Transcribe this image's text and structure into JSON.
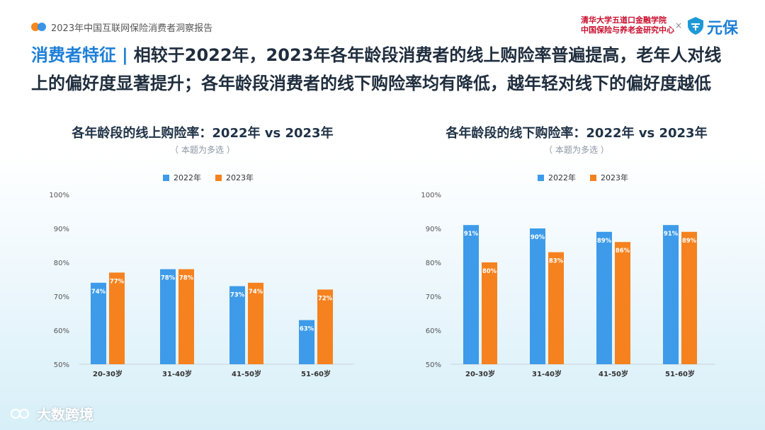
{
  "header": {
    "report_title": "2023年中国互联网保险消费者洞察报告",
    "org_line1": "清华大学五道口金融学院",
    "org_line2": "中国保险与养老金研究中心",
    "cross": "×",
    "brand_name": "元保",
    "colors": {
      "brand_blue": "#1d7fd6",
      "org_red": "#c8102e"
    }
  },
  "headline": {
    "tag": "消费者特征",
    "separator": "|",
    "line1": "相较于2022年，2023年各年龄段消费者的线上购险率普遍提高，老年人对线",
    "line2": "上的偏好度显著提升；各年龄段消费者的线下购险率均有降低，越年轻对线下的偏好度越低"
  },
  "watermark": {
    "text": "大数跨境",
    "icon": "logo-icon"
  },
  "chart_data": [
    {
      "type": "bar",
      "title": "各年龄段的线上购险率：2022年 vs 2023年",
      "subtitle": "（ 本题为多选 ）",
      "categories": [
        "20-30岁",
        "31-40岁",
        "41-50岁",
        "51-60岁"
      ],
      "series": [
        {
          "name": "2022年",
          "color": "#3d9be9",
          "values": [
            74,
            78,
            73,
            63
          ],
          "labels": [
            "74%",
            "78%",
            "73%",
            "63%"
          ]
        },
        {
          "name": "2023年",
          "color": "#f5821f",
          "values": [
            77,
            78,
            74,
            72
          ],
          "labels": [
            "77%",
            "78%",
            "74%",
            "72%"
          ]
        }
      ],
      "yticks": [
        "100%",
        "90%",
        "80%",
        "70%",
        "60%",
        "50%"
      ],
      "ylim": [
        50,
        100
      ],
      "legend": "top-center",
      "grid": false
    },
    {
      "type": "bar",
      "title": "各年龄段的线下购险率：2022年 vs 2023年",
      "subtitle": "（ 本题为多选 ）",
      "categories": [
        "20-30岁",
        "31-40岁",
        "41-50岁",
        "51-60岁"
      ],
      "series": [
        {
          "name": "2022年",
          "color": "#3d9be9",
          "values": [
            91,
            90,
            89,
            91
          ],
          "labels": [
            "91%",
            "90%",
            "89%",
            "91%"
          ]
        },
        {
          "name": "2023年",
          "color": "#f5821f",
          "values": [
            80,
            83,
            86,
            89
          ],
          "labels": [
            "80%",
            "83%",
            "86%",
            "89%"
          ]
        }
      ],
      "yticks": [
        "100%",
        "90%",
        "80%",
        "70%",
        "60%",
        "50%"
      ],
      "ylim": [
        50,
        100
      ],
      "legend": "top-center",
      "grid": false
    }
  ]
}
